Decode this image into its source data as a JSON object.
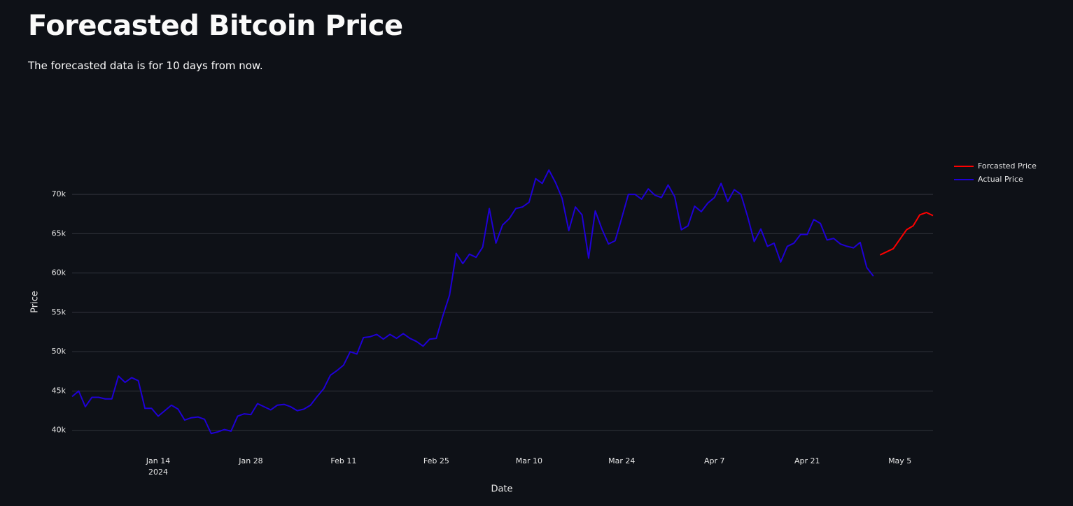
{
  "header": {
    "title": "Forecasted Bitcoin Price",
    "subtitle": "The forecasted data is for 10 days from now."
  },
  "chart_data": {
    "type": "line",
    "xlabel": "Date",
    "ylabel": "Price",
    "xlim": [
      "2024-01-01",
      "2024-05-10"
    ],
    "ylim": [
      37400,
      74100
    ],
    "xticks": [
      {
        "value": "2024-01-14",
        "label": "Jan 14"
      },
      {
        "value": "2024-01-28",
        "label": "Jan 28"
      },
      {
        "value": "2024-02-11",
        "label": "Feb 11"
      },
      {
        "value": "2024-02-25",
        "label": "Feb 25"
      },
      {
        "value": "2024-03-10",
        "label": "Mar 10"
      },
      {
        "value": "2024-03-24",
        "label": "Mar 24"
      },
      {
        "value": "2024-04-07",
        "label": "Apr 7"
      },
      {
        "value": "2024-04-21",
        "label": "Apr 21"
      },
      {
        "value": "2024-05-05",
        "label": "May 5"
      }
    ],
    "xtick_year": "2024",
    "yticks": [
      {
        "value": 40000,
        "label": "40k"
      },
      {
        "value": 45000,
        "label": "45k"
      },
      {
        "value": 50000,
        "label": "50k"
      },
      {
        "value": 55000,
        "label": "55k"
      },
      {
        "value": 60000,
        "label": "60k"
      },
      {
        "value": 65000,
        "label": "65k"
      },
      {
        "value": 70000,
        "label": "70k"
      }
    ],
    "grid": true,
    "legend": "right",
    "series": [
      {
        "name": "Forcasted Price",
        "color": "#ff0000",
        "x": [
          "2024-05-02",
          "2024-05-03",
          "2024-05-04",
          "2024-05-05",
          "2024-05-06",
          "2024-05-07",
          "2024-05-08",
          "2024-05-09",
          "2024-05-10"
        ],
        "values": [
          62300,
          62700,
          63100,
          64300,
          65500,
          66000,
          67400,
          67700,
          67300
        ]
      },
      {
        "name": "Actual Price",
        "color": "#1f00d6",
        "x": [
          "2024-01-01",
          "2024-01-02",
          "2024-01-03",
          "2024-01-04",
          "2024-01-05",
          "2024-01-06",
          "2024-01-07",
          "2024-01-08",
          "2024-01-09",
          "2024-01-10",
          "2024-01-11",
          "2024-01-12",
          "2024-01-13",
          "2024-01-14",
          "2024-01-15",
          "2024-01-16",
          "2024-01-17",
          "2024-01-18",
          "2024-01-19",
          "2024-01-20",
          "2024-01-21",
          "2024-01-22",
          "2024-01-23",
          "2024-01-24",
          "2024-01-25",
          "2024-01-26",
          "2024-01-27",
          "2024-01-28",
          "2024-01-29",
          "2024-01-30",
          "2024-01-31",
          "2024-02-01",
          "2024-02-02",
          "2024-02-03",
          "2024-02-04",
          "2024-02-05",
          "2024-02-06",
          "2024-02-07",
          "2024-02-08",
          "2024-02-09",
          "2024-02-10",
          "2024-02-11",
          "2024-02-12",
          "2024-02-13",
          "2024-02-14",
          "2024-02-15",
          "2024-02-16",
          "2024-02-17",
          "2024-02-18",
          "2024-02-19",
          "2024-02-20",
          "2024-02-21",
          "2024-02-22",
          "2024-02-23",
          "2024-02-24",
          "2024-02-25",
          "2024-02-26",
          "2024-02-27",
          "2024-02-28",
          "2024-02-29",
          "2024-03-01",
          "2024-03-02",
          "2024-03-03",
          "2024-03-04",
          "2024-03-05",
          "2024-03-06",
          "2024-03-07",
          "2024-03-08",
          "2024-03-09",
          "2024-03-10",
          "2024-03-11",
          "2024-03-12",
          "2024-03-13",
          "2024-03-14",
          "2024-03-15",
          "2024-03-16",
          "2024-03-17",
          "2024-03-18",
          "2024-03-19",
          "2024-03-20",
          "2024-03-21",
          "2024-03-22",
          "2024-03-23",
          "2024-03-24",
          "2024-03-25",
          "2024-03-26",
          "2024-03-27",
          "2024-03-28",
          "2024-03-29",
          "2024-03-30",
          "2024-03-31",
          "2024-04-01",
          "2024-04-02",
          "2024-04-03",
          "2024-04-04",
          "2024-04-05",
          "2024-04-06",
          "2024-04-07",
          "2024-04-08",
          "2024-04-09",
          "2024-04-10",
          "2024-04-11",
          "2024-04-12",
          "2024-04-13",
          "2024-04-14",
          "2024-04-15",
          "2024-04-16",
          "2024-04-17",
          "2024-04-18",
          "2024-04-19",
          "2024-04-20",
          "2024-04-21",
          "2024-04-22",
          "2024-04-23",
          "2024-04-24",
          "2024-04-25",
          "2024-04-26",
          "2024-04-27",
          "2024-04-28",
          "2024-04-29",
          "2024-04-30",
          "2024-05-01"
        ],
        "values": [
          44300,
          45000,
          43000,
          44200,
          44200,
          44000,
          44000,
          46900,
          46100,
          46700,
          46300,
          42800,
          42800,
          41800,
          42500,
          43200,
          42700,
          41300,
          41600,
          41700,
          41400,
          39600,
          39800,
          40100,
          39900,
          41800,
          42100,
          42000,
          43400,
          43000,
          42600,
          43200,
          43300,
          43000,
          42500,
          42700,
          43200,
          44300,
          45300,
          47000,
          47600,
          48300,
          50000,
          49700,
          51800,
          51900,
          52200,
          51600,
          52200,
          51700,
          52300,
          51700,
          51300,
          50700,
          51600,
          51700,
          54600,
          57200,
          62500,
          61200,
          62400,
          62000,
          63300,
          68200,
          63800,
          66100,
          66900,
          68200,
          68400,
          69000,
          72000,
          71400,
          73100,
          71500,
          69500,
          65400,
          68400,
          67400,
          61900,
          67900,
          65600,
          63700,
          64100,
          67000,
          70000,
          70000,
          69400,
          70700,
          69900,
          69600,
          71200,
          69700,
          65500,
          66000,
          68500,
          67800,
          68900,
          69600,
          71400,
          69100,
          70600,
          70000,
          67200,
          64000,
          65600,
          63400,
          63800,
          61400,
          63400,
          63800,
          64900,
          64900,
          66800,
          66300,
          64200,
          64400,
          63700,
          63400,
          63200,
          63900,
          60700,
          59600
        ]
      }
    ]
  }
}
